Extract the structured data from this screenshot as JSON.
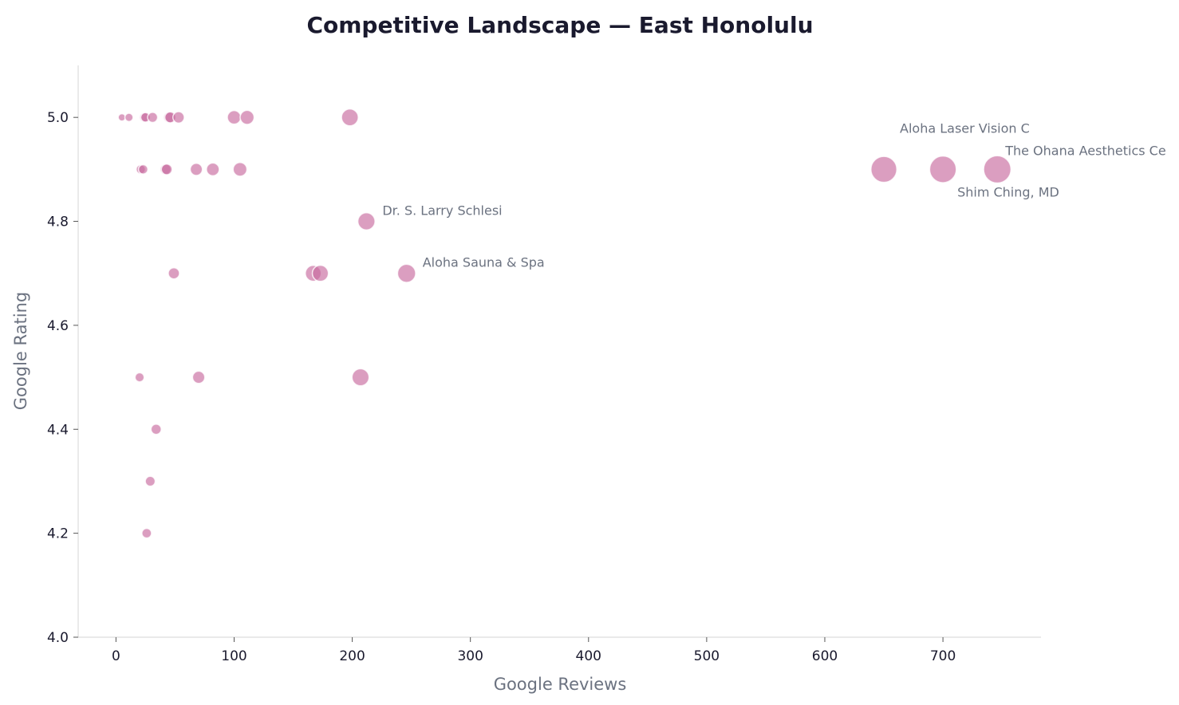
{
  "chart_data": {
    "type": "scatter",
    "title": "Competitive Landscape — East Honolulu",
    "xlabel": "Google Reviews",
    "ylabel": "Google Rating",
    "xlim": [
      -32,
      783
    ],
    "ylim": [
      4.0,
      5.1
    ],
    "xticks": [
      0,
      100,
      200,
      300,
      400,
      500,
      600,
      700
    ],
    "yticks": [
      "4.0",
      "4.2",
      "4.4",
      "4.6",
      "4.8",
      "5.0"
    ],
    "grid": false,
    "marker_size_encodes": "Google Reviews",
    "colors": {
      "marker": "#c86a9e",
      "marker_edge": "#ffffff",
      "title": "#1a1a2e",
      "axis_label": "#6b7280",
      "annotation": "#6b7280",
      "spine": "#dddddd"
    },
    "points": [
      {
        "x": 5,
        "y": 5.0
      },
      {
        "x": 11,
        "y": 5.0
      },
      {
        "x": 24,
        "y": 5.0
      },
      {
        "x": 25,
        "y": 5.0
      },
      {
        "x": 31,
        "y": 5.0
      },
      {
        "x": 45,
        "y": 5.0
      },
      {
        "x": 46,
        "y": 5.0
      },
      {
        "x": 53,
        "y": 5.0
      },
      {
        "x": 100,
        "y": 5.0
      },
      {
        "x": 111,
        "y": 5.0
      },
      {
        "x": 198,
        "y": 5.0
      },
      {
        "x": 21,
        "y": 4.9
      },
      {
        "x": 23,
        "y": 4.9
      },
      {
        "x": 42,
        "y": 4.9
      },
      {
        "x": 43,
        "y": 4.9
      },
      {
        "x": 68,
        "y": 4.9
      },
      {
        "x": 82,
        "y": 4.9
      },
      {
        "x": 105,
        "y": 4.9
      },
      {
        "x": 212,
        "y": 4.8,
        "label": "Dr. S. Larry Schlesi"
      },
      {
        "x": 49,
        "y": 4.7
      },
      {
        "x": 167,
        "y": 4.7
      },
      {
        "x": 173,
        "y": 4.7
      },
      {
        "x": 246,
        "y": 4.7,
        "label": "Aloha Sauna & Spa"
      },
      {
        "x": 20,
        "y": 4.5
      },
      {
        "x": 70,
        "y": 4.5
      },
      {
        "x": 207,
        "y": 4.5
      },
      {
        "x": 34,
        "y": 4.4
      },
      {
        "x": 29,
        "y": 4.3
      },
      {
        "x": 26,
        "y": 4.2
      },
      {
        "x": 650,
        "y": 4.9,
        "label": "Aloha Laser Vision C"
      },
      {
        "x": 700,
        "y": 4.9,
        "label": "Shim Ching, MD"
      },
      {
        "x": 746,
        "y": 4.9,
        "label": "The Ohana Aesthetics Ce"
      }
    ]
  }
}
